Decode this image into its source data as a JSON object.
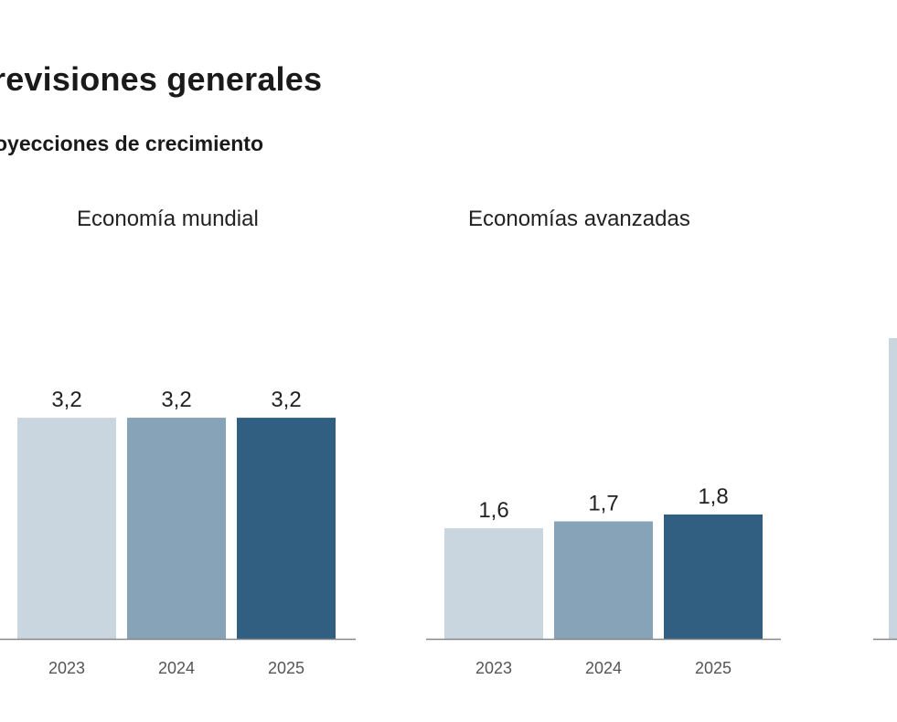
{
  "header": {
    "title": "revisiones generales",
    "subtitle": "oyecciones de crecimiento"
  },
  "colors": {
    "y2023": "#c9d5df",
    "y2024": "#87a3b8",
    "y2025": "#315f81",
    "baseline": "#888888",
    "partial": "#c9d5df"
  },
  "chart_data": [
    {
      "type": "bar",
      "title": "Economía mundial",
      "categories": [
        "2023",
        "2024",
        "2025"
      ],
      "values": [
        3.2,
        3.2,
        3.2
      ],
      "value_labels": [
        "3,2",
        "3,2",
        "3,2"
      ],
      "ylim": [
        0,
        5
      ]
    },
    {
      "type": "bar",
      "title": "Economías avanzadas",
      "categories": [
        "2023",
        "2024",
        "2025"
      ],
      "values": [
        1.6,
        1.7,
        1.8
      ],
      "value_labels": [
        "1,6",
        "1,7",
        "1,8"
      ],
      "ylim": [
        0,
        5
      ]
    }
  ]
}
